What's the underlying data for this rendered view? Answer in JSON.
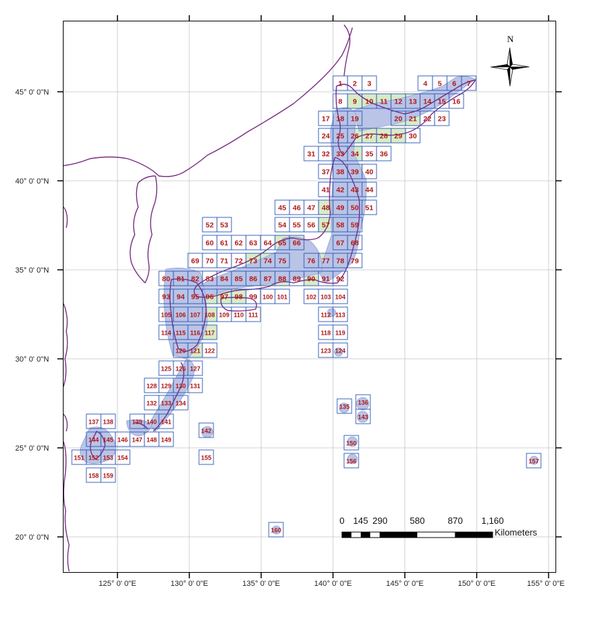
{
  "map": {
    "latitude_labels": [
      "45° 0' 0\"N",
      "40° 0' 0\"N",
      "35° 0' 0\"N",
      "30° 0' 0\"N",
      "25° 0' 0\"N",
      "20° 0' 0\"N"
    ],
    "longitude_labels": [
      "125° 0' 0\"E",
      "130° 0' 0\"E",
      "135° 0' 0\"E",
      "140° 0' 0\"E",
      "145° 0' 0\"E",
      "150° 0' 0\"E",
      "155° 0' 0\"E"
    ],
    "north_arrow_label": "N",
    "scale_bar": {
      "ticks": [
        "0",
        "145",
        "290",
        "580",
        "870",
        "1,160"
      ],
      "unit": "Kilometers"
    },
    "colors": {
      "coastline": "#7b2d83",
      "grid_line": "#2a56b5",
      "tile_fill": "#d7ecc6",
      "coastal_buffer": "#b9c4e6",
      "tile_number": "#b01818",
      "graticule": "#c4c4c4"
    },
    "tiles": [
      "1",
      "2",
      "3",
      "4",
      "5",
      "6",
      "7",
      "8",
      "9",
      "10",
      "11",
      "12",
      "13",
      "14",
      "15",
      "16",
      "17",
      "18",
      "19",
      "20",
      "21",
      "22",
      "23",
      "24",
      "25",
      "26",
      "27",
      "28",
      "29",
      "30",
      "31",
      "32",
      "33",
      "34",
      "35",
      "36",
      "37",
      "38",
      "39",
      "40",
      "41",
      "42",
      "43",
      "44",
      "45",
      "46",
      "47",
      "48",
      "49",
      "50",
      "51",
      "52",
      "53",
      "54",
      "55",
      "56",
      "57",
      "58",
      "59",
      "60",
      "61",
      "62",
      "63",
      "64",
      "65",
      "66",
      "67",
      "68",
      "69",
      "70",
      "71",
      "72",
      "73",
      "74",
      "75",
      "76",
      "77",
      "78",
      "79",
      "80",
      "81",
      "82",
      "83",
      "84",
      "85",
      "86",
      "87",
      "88",
      "89",
      "90",
      "91",
      "92",
      "93",
      "94",
      "95",
      "96",
      "97",
      "98",
      "99",
      "100",
      "101",
      "102",
      "103",
      "104",
      "105",
      "106",
      "107",
      "108",
      "109",
      "110",
      "111",
      "112",
      "113",
      "114",
      "115",
      "116",
      "117",
      "118",
      "119",
      "120",
      "121",
      "122",
      "123",
      "124",
      "125",
      "126",
      "127",
      "128",
      "129",
      "130",
      "131",
      "132",
      "133",
      "134",
      "135",
      "136",
      "137",
      "138",
      "139",
      "140",
      "141",
      "142",
      "143",
      "144",
      "145",
      "146",
      "147",
      "148",
      "149",
      "150",
      "151",
      "152",
      "153",
      "154",
      "155",
      "156",
      "157",
      "158",
      "159",
      "160"
    ]
  }
}
